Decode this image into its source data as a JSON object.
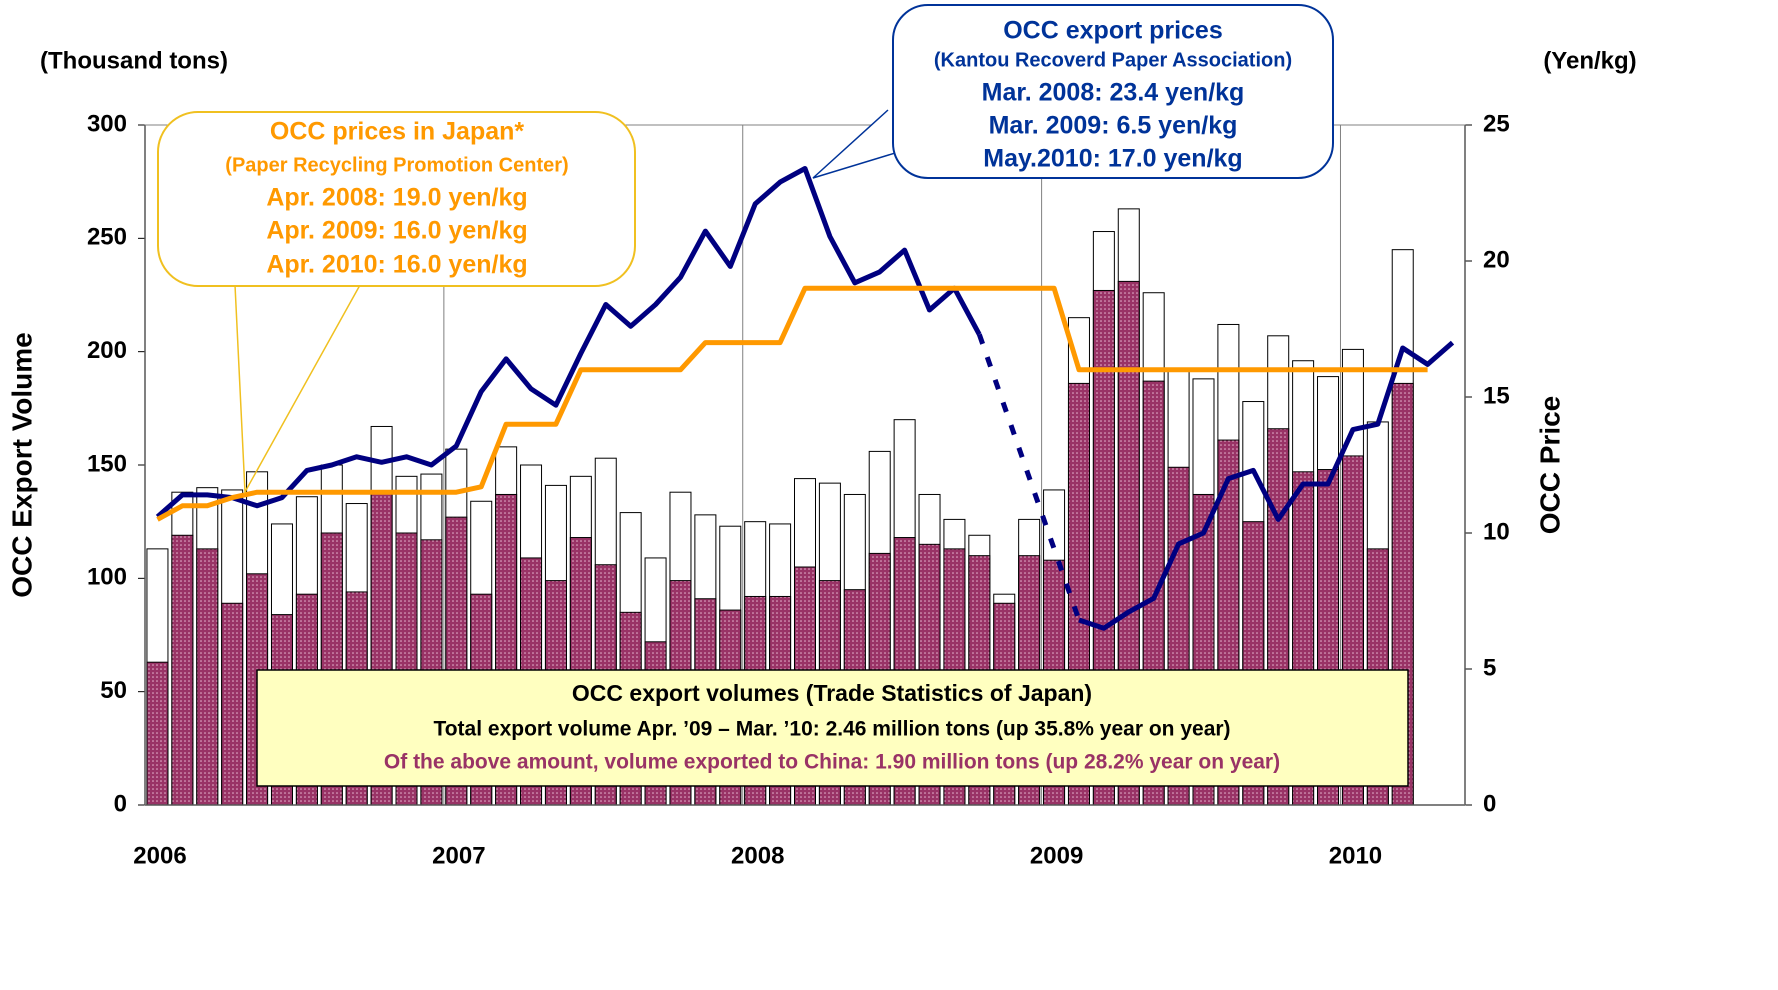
{
  "chart_data": {
    "type": "bar",
    "ylabel": "OCC Export Volume",
    "y2label": "OCC Price",
    "yunit": "(Thousand tons)",
    "y2unit": "(Yen/kg)",
    "categories": [
      "2006",
      null,
      null,
      null,
      null,
      null,
      null,
      null,
      null,
      null,
      null,
      null,
      "2007",
      null,
      null,
      null,
      null,
      null,
      null,
      null,
      null,
      null,
      null,
      null,
      "2008",
      null,
      null,
      null,
      null,
      null,
      null,
      null,
      null,
      null,
      null,
      null,
      "2009",
      null,
      null,
      null,
      null,
      null,
      null,
      null,
      null,
      null,
      null,
      null,
      "2010",
      null,
      null,
      null,
      null
    ],
    "ylim": [
      0,
      300
    ],
    "yticks": [
      0,
      50,
      100,
      150,
      200,
      250,
      300
    ],
    "y2lim": [
      0,
      25
    ],
    "y2ticks": [
      0,
      5,
      10,
      15,
      20,
      25
    ],
    "grid": true,
    "series": [
      {
        "type": "bar",
        "color": "#ffffff",
        "values": [
          113,
          138,
          140,
          139,
          147,
          124,
          136,
          150,
          133,
          167,
          145,
          146,
          157,
          134,
          158,
          150,
          141,
          145,
          153,
          129,
          109,
          138,
          128,
          123,
          125,
          124,
          144,
          142,
          137,
          156,
          170,
          137,
          126,
          119,
          93,
          126,
          139,
          215,
          253,
          263,
          226,
          192,
          188,
          212,
          178,
          207,
          196,
          189,
          201,
          169,
          245,
          null,
          null
        ]
      },
      {
        "type": "bar",
        "color": "#993366",
        "values": [
          63,
          119,
          113,
          89,
          102,
          84,
          93,
          120,
          94,
          138,
          120,
          117,
          127,
          93,
          137,
          109,
          99,
          118,
          106,
          85,
          72,
          99,
          91,
          86,
          92,
          92,
          105,
          99,
          95,
          111,
          118,
          115,
          113,
          110,
          89,
          110,
          108,
          186,
          227,
          231,
          187,
          149,
          137,
          161,
          125,
          166,
          147,
          148,
          154,
          113,
          186,
          null,
          null
        ]
      },
      {
        "type": "line",
        "axis": "y2",
        "color": "#000080",
        "gap": "dashed",
        "values": [
          10.6,
          11.4,
          11.4,
          11.3,
          11.0,
          11.3,
          12.3,
          12.5,
          12.8,
          12.6,
          12.8,
          12.5,
          13.2,
          15.2,
          16.4,
          15.3,
          14.7,
          16.6,
          18.4,
          17.6,
          18.4,
          19.4,
          21.1,
          19.8,
          22.1,
          22.9,
          23.4,
          20.9,
          19.2,
          19.6,
          20.4,
          18.2,
          19.0,
          17.3,
          null,
          null,
          null,
          6.8,
          6.5,
          7.1,
          7.6,
          9.6,
          10.0,
          12.0,
          12.3,
          10.5,
          11.8,
          11.8,
          13.8,
          14.0,
          16.8,
          16.2,
          17.0
        ]
      },
      {
        "type": "line",
        "axis": "y2",
        "color": "#ff9900",
        "values": [
          10.5,
          11.0,
          11.0,
          11.3,
          11.5,
          11.5,
          11.5,
          11.5,
          11.5,
          11.5,
          11.5,
          11.5,
          11.5,
          11.7,
          14.0,
          14.0,
          14.0,
          16.0,
          16.0,
          16.0,
          16.0,
          16.0,
          17.0,
          17.0,
          17.0,
          17.0,
          19.0,
          19.0,
          19.0,
          19.0,
          19.0,
          19.0,
          19.0,
          19.0,
          19.0,
          19.0,
          19.0,
          16.0,
          16.0,
          16.0,
          16.0,
          16.0,
          16.0,
          16.0,
          16.0,
          16.0,
          16.0,
          16.0,
          16.0,
          16.0,
          16.0,
          16.0,
          null
        ]
      }
    ],
    "annotations": [
      {
        "color": "#ff9900",
        "lines": [
          "OCC prices in Japan*",
          "(Paper Recycling Promotion Center)",
          "Apr. 2008: 19.0 yen/kg",
          "Apr. 2009: 16.0 yen/kg",
          "Apr. 2010: 16.0 yen/kg"
        ]
      },
      {
        "color": "#003399",
        "lines": [
          "OCC export prices",
          "(Kantou Recoverd Paper Association)",
          "Mar. 2008: 23.4 yen/kg",
          "Mar. 2009:   6.5 yen/kg",
          "May.2010: 17.0 yen/kg"
        ]
      },
      {
        "color": "#000000",
        "lines": [
          "OCC export volumes (Trade Statistics of Japan)",
          "Total export volume Apr. ’09 – Mar. ’10: 2.46 million tons (up 35.8% year on year)",
          "Of the above amount, volume exported to China: 1.90 million tons (up 28.2% year on year)"
        ],
        "line_colors": [
          "#000000",
          "#000000",
          "#993366"
        ]
      }
    ]
  }
}
